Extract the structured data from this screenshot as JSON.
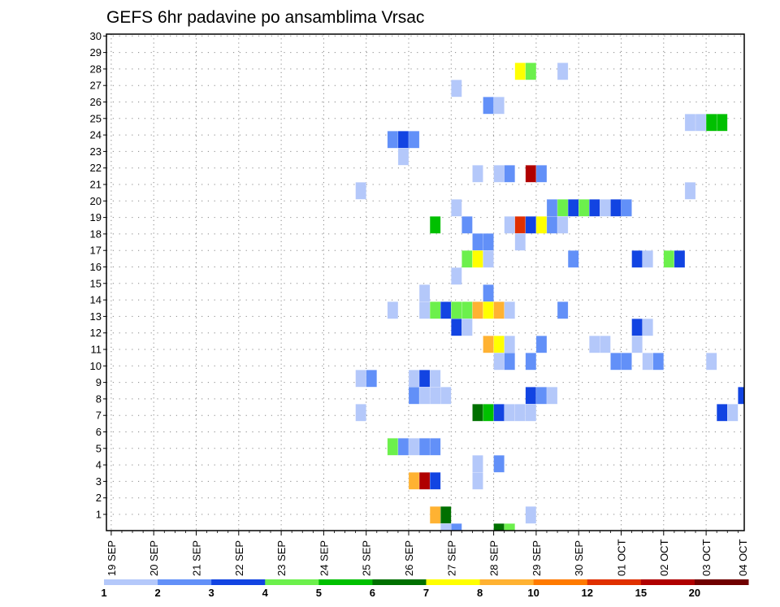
{
  "chart_data": {
    "type": "heatmap",
    "title": "GEFS 6hr padavine po ansamblima Vrsac",
    "xlabel": "",
    "ylabel": "",
    "time_step_hours": 6,
    "x_ticks": [
      "19 SEP",
      "20 SEP",
      "21 SEP",
      "22 SEP",
      "23 SEP",
      "24 SEP",
      "25 SEP",
      "26 SEP",
      "27 SEP",
      "28 SEP",
      "29 SEP",
      "30 SEP",
      "01 OCT",
      "02 OCT",
      "03 OCT",
      "04 OCT"
    ],
    "y_ticks": [
      "1",
      "2",
      "3",
      "4",
      "5",
      "6",
      "7",
      "8",
      "9",
      "10",
      "11",
      "12",
      "13",
      "14",
      "15",
      "16",
      "17",
      "18",
      "19",
      "20",
      "21",
      "22",
      "23",
      "24",
      "25",
      "26",
      "27",
      "28",
      "29",
      "30"
    ],
    "ylim": [
      0,
      30
    ],
    "grid": true,
    "legend": {
      "placement": "bottom",
      "labels": [
        "1",
        "2",
        "3",
        "4",
        "5",
        "6",
        "7",
        "8",
        "10",
        "12",
        "15",
        "20"
      ],
      "colors": [
        "#b4c8fa",
        "#6290f8",
        "#1244e2",
        "#6cf04c",
        "#00c000",
        "#007000",
        "#ffff00",
        "#ffb232",
        "#ff7a00",
        "#e03000",
        "#b00000",
        "#700000"
      ]
    },
    "cell_fields": [
      "time_step_from_19_SEP_00Z",
      "member",
      "class_index"
    ],
    "cells": [
      [
        38,
        27,
        6
      ],
      [
        39,
        27,
        3
      ],
      [
        42,
        27,
        0
      ],
      [
        32,
        26,
        0
      ],
      [
        35,
        25,
        1
      ],
      [
        36,
        25,
        0
      ],
      [
        54,
        24,
        0
      ],
      [
        55,
        24,
        0
      ],
      [
        56,
        24,
        4
      ],
      [
        57,
        24,
        4
      ],
      [
        26,
        23,
        1
      ],
      [
        27,
        23,
        2
      ],
      [
        28,
        23,
        1
      ],
      [
        27,
        22,
        0
      ],
      [
        34,
        21,
        0
      ],
      [
        36,
        21,
        0
      ],
      [
        37,
        21,
        1
      ],
      [
        39,
        21,
        10
      ],
      [
        40,
        21,
        1
      ],
      [
        23,
        20,
        0
      ],
      [
        54,
        20,
        0
      ],
      [
        32,
        19,
        0
      ],
      [
        41,
        19,
        1
      ],
      [
        42,
        19,
        3
      ],
      [
        43,
        19,
        2
      ],
      [
        44,
        19,
        3
      ],
      [
        45,
        19,
        2
      ],
      [
        46,
        19,
        0
      ],
      [
        47,
        19,
        2
      ],
      [
        48,
        19,
        1
      ],
      [
        30,
        18,
        4
      ],
      [
        33,
        18,
        1
      ],
      [
        37,
        18,
        0
      ],
      [
        38,
        18,
        9
      ],
      [
        39,
        18,
        2
      ],
      [
        40,
        18,
        6
      ],
      [
        41,
        18,
        1
      ],
      [
        42,
        18,
        0
      ],
      [
        34,
        17,
        1
      ],
      [
        35,
        17,
        1
      ],
      [
        38,
        17,
        0
      ],
      [
        33,
        16,
        3
      ],
      [
        34,
        16,
        6
      ],
      [
        35,
        16,
        0
      ],
      [
        43,
        16,
        1
      ],
      [
        49,
        16,
        2
      ],
      [
        50,
        16,
        0
      ],
      [
        52,
        16,
        3
      ],
      [
        53,
        16,
        2
      ],
      [
        32,
        15,
        0
      ],
      [
        29,
        14,
        0
      ],
      [
        35,
        14,
        1
      ],
      [
        26,
        13,
        0
      ],
      [
        29,
        13,
        0
      ],
      [
        30,
        13,
        3
      ],
      [
        31,
        13,
        2
      ],
      [
        32,
        13,
        3
      ],
      [
        33,
        13,
        3
      ],
      [
        34,
        13,
        7
      ],
      [
        35,
        13,
        6
      ],
      [
        36,
        13,
        7
      ],
      [
        37,
        13,
        0
      ],
      [
        42,
        13,
        1
      ],
      [
        32,
        12,
        2
      ],
      [
        33,
        12,
        0
      ],
      [
        49,
        12,
        2
      ],
      [
        50,
        12,
        0
      ],
      [
        35,
        11,
        7
      ],
      [
        36,
        11,
        6
      ],
      [
        37,
        11,
        0
      ],
      [
        40,
        11,
        1
      ],
      [
        45,
        11,
        0
      ],
      [
        46,
        11,
        0
      ],
      [
        49,
        11,
        0
      ],
      [
        36,
        10,
        0
      ],
      [
        37,
        10,
        1
      ],
      [
        39,
        10,
        1
      ],
      [
        47,
        10,
        1
      ],
      [
        48,
        10,
        1
      ],
      [
        50,
        10,
        0
      ],
      [
        51,
        10,
        1
      ],
      [
        56,
        10,
        0
      ],
      [
        23,
        9,
        0
      ],
      [
        24,
        9,
        1
      ],
      [
        28,
        9,
        0
      ],
      [
        29,
        9,
        2
      ],
      [
        30,
        9,
        0
      ],
      [
        28,
        8,
        1
      ],
      [
        29,
        8,
        0
      ],
      [
        30,
        8,
        0
      ],
      [
        31,
        8,
        0
      ],
      [
        39,
        8,
        2
      ],
      [
        40,
        8,
        1
      ],
      [
        41,
        8,
        0
      ],
      [
        59,
        8,
        2
      ],
      [
        23,
        7,
        0
      ],
      [
        34,
        7,
        5
      ],
      [
        35,
        7,
        4
      ],
      [
        36,
        7,
        2
      ],
      [
        37,
        7,
        0
      ],
      [
        38,
        7,
        0
      ],
      [
        39,
        7,
        0
      ],
      [
        57,
        7,
        2
      ],
      [
        58,
        7,
        0
      ],
      [
        26,
        5,
        3
      ],
      [
        27,
        5,
        1
      ],
      [
        28,
        5,
        0
      ],
      [
        29,
        5,
        1
      ],
      [
        30,
        5,
        1
      ],
      [
        34,
        4,
        0
      ],
      [
        36,
        4,
        1
      ],
      [
        28,
        3,
        7
      ],
      [
        29,
        3,
        10
      ],
      [
        30,
        3,
        2
      ],
      [
        34,
        3,
        0
      ],
      [
        30,
        1,
        7
      ],
      [
        31,
        1,
        5
      ],
      [
        39,
        1,
        0
      ],
      [
        31,
        0,
        0
      ],
      [
        32,
        0,
        1
      ],
      [
        36,
        0,
        5
      ],
      [
        37,
        0,
        3
      ]
    ]
  }
}
